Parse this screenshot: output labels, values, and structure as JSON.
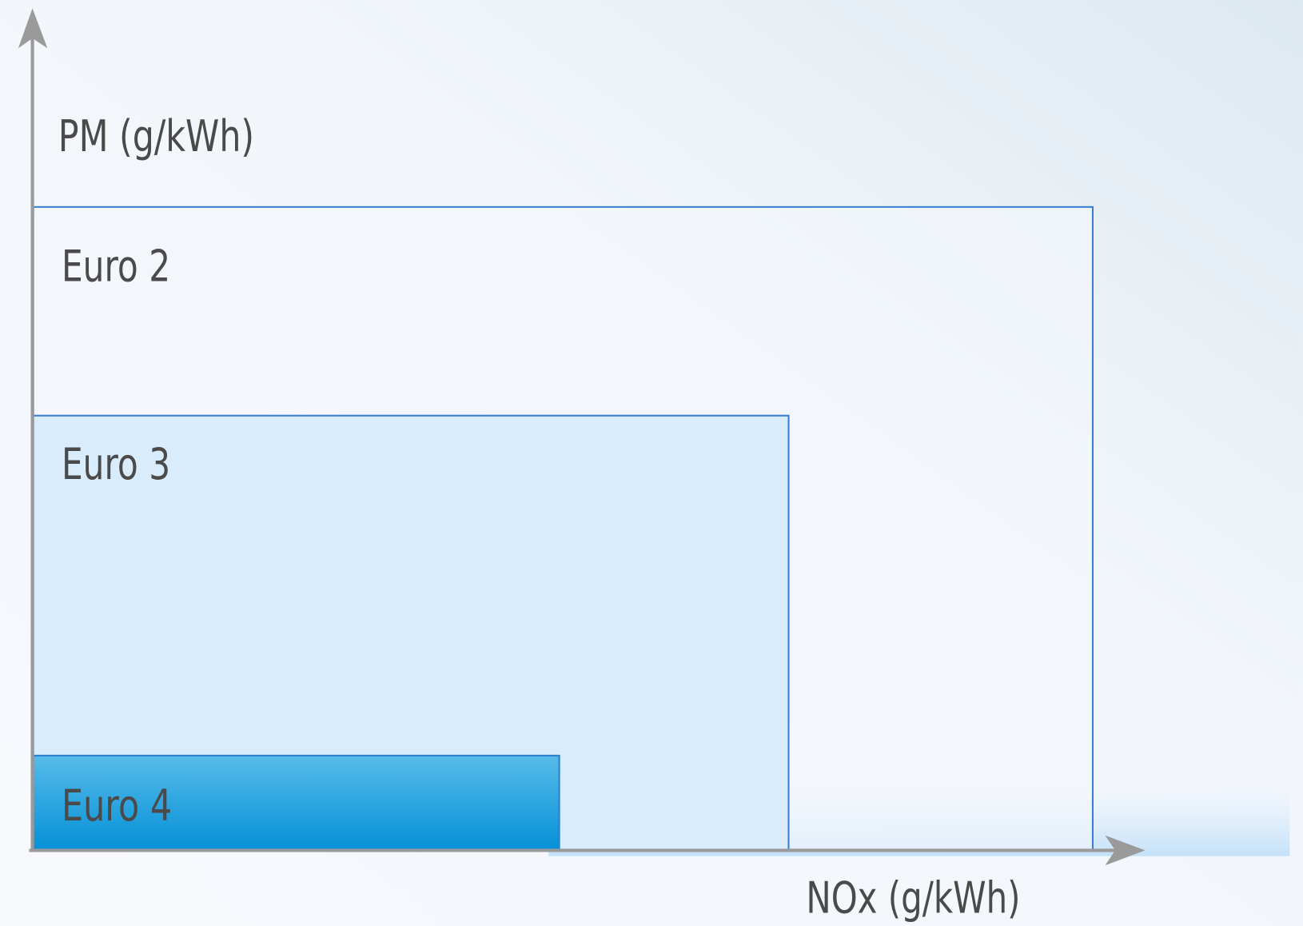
{
  "axes": {
    "y_label": "PM (g/kWh)",
    "x_label": "NOx (g/kWh)"
  },
  "boxes": [
    {
      "label": "Euro 2"
    },
    {
      "label": "Euro 3"
    },
    {
      "label": "Euro 4"
    }
  ]
}
